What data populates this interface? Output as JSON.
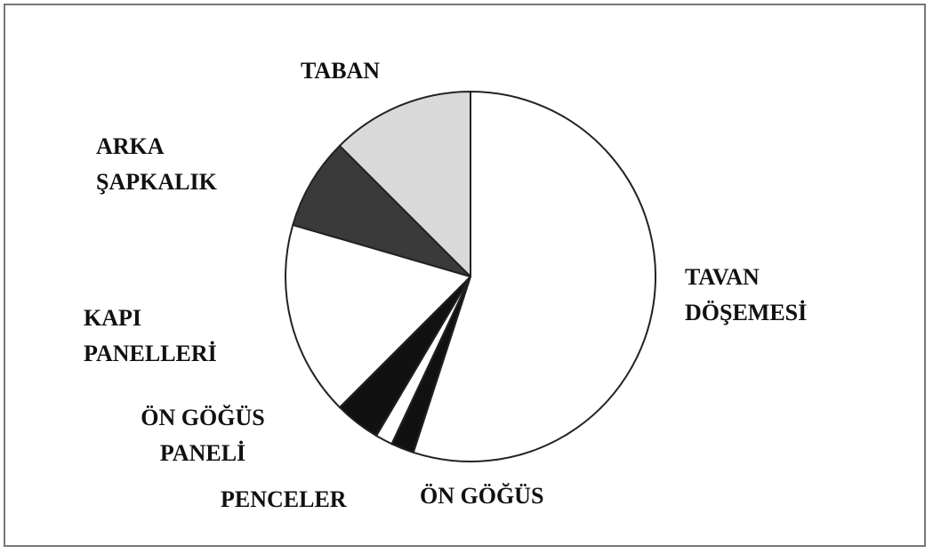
{
  "chart_data": {
    "type": "pie",
    "categories": [
      "TAVAN DÖŞEMESİ",
      "ÖN GÖĞÜS",
      "PENCELER",
      "ÖN GÖĞÜS PANELİ",
      "KAPI PANELLERİ",
      "ARKA ŞAPKALIK",
      "TABAN"
    ],
    "values": [
      55,
      2,
      1.5,
      4,
      17,
      8,
      12.5
    ],
    "colors": [
      "#ffffff",
      "#111111",
      "#ffffff",
      "#111111",
      "#ffffff",
      "#3a3a3a",
      "#d9d9d9"
    ]
  }
}
